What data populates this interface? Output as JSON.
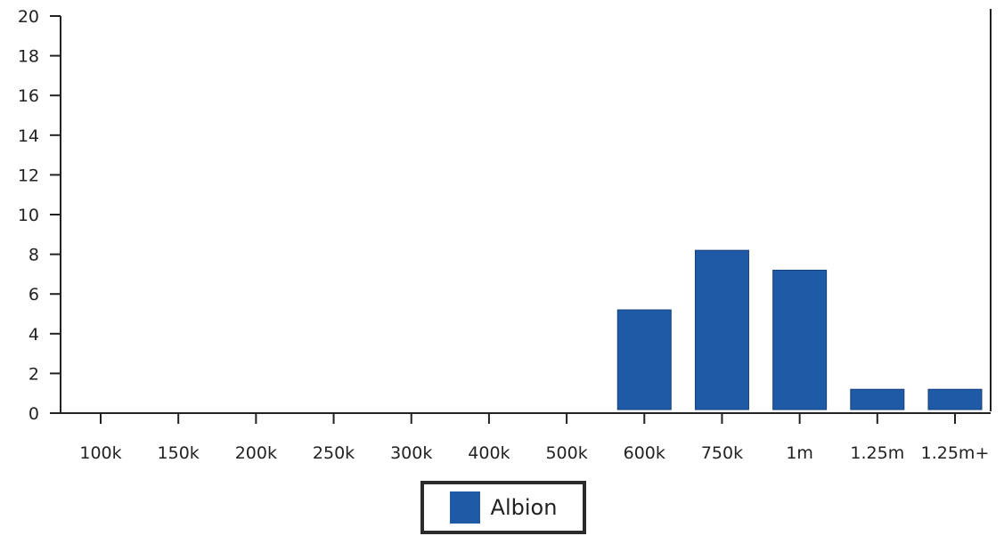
{
  "chart_data": {
    "type": "bar",
    "categories": [
      "100k",
      "150k",
      "200k",
      "250k",
      "300k",
      "400k",
      "500k",
      "600k",
      "750k",
      "1m",
      "1.25m",
      "1.25m+"
    ],
    "series": [
      {
        "name": "Albion",
        "values": [
          0,
          0,
          0,
          0,
          0,
          0,
          0,
          5.2,
          8.2,
          7.2,
          1.2,
          1.2
        ],
        "color": "#1f5aa6"
      }
    ],
    "yticks": [
      "0",
      "2",
      "4",
      "6",
      "8",
      "10",
      "12",
      "14",
      "16",
      "18",
      "20"
    ],
    "ylim": [
      0,
      20
    ],
    "grid": false,
    "legend": "bottom-center"
  }
}
